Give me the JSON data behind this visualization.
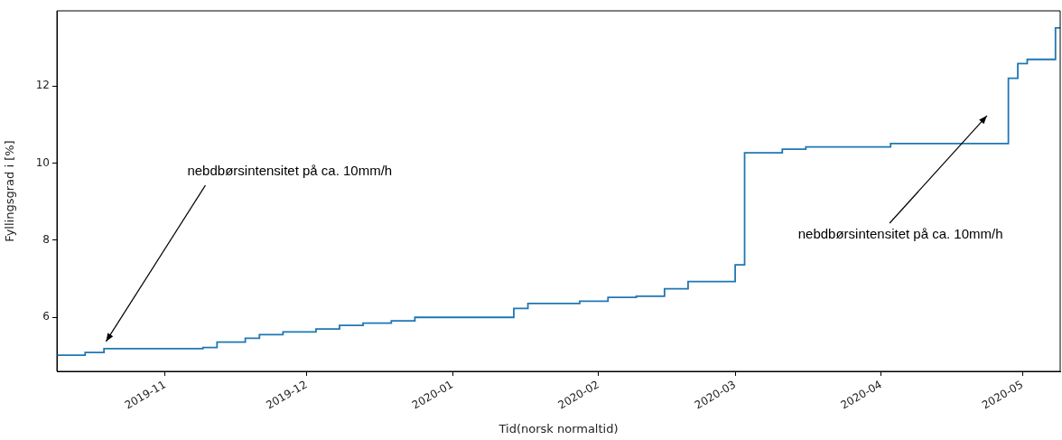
{
  "chart_data": {
    "type": "step",
    "xlabel": "Tid(norsk normaltid)",
    "ylabel": "Fyllingsgrad i [%]",
    "x": [
      "2019-10-09",
      "2019-10-15",
      "2019-10-19",
      "2019-11-09",
      "2019-11-12",
      "2019-11-18",
      "2019-11-21",
      "2019-11-26",
      "2019-12-03",
      "2019-12-08",
      "2019-12-13",
      "2019-12-19",
      "2019-12-24",
      "2020-01-14",
      "2020-01-17",
      "2020-01-28",
      "2020-02-03",
      "2020-02-09",
      "2020-02-15",
      "2020-02-20",
      "2020-03-01",
      "2020-03-03",
      "2020-03-11",
      "2020-03-16",
      "2020-04-03",
      "2020-04-28",
      "2020-04-30",
      "2020-05-02",
      "2020-05-08",
      "2020-05-09"
    ],
    "series": [
      {
        "color": "#1f77b4",
        "values": [
          5.02,
          5.09,
          5.19,
          5.22,
          5.36,
          5.46,
          5.55,
          5.62,
          5.7,
          5.79,
          5.85,
          5.91,
          6.0,
          6.23,
          6.36,
          6.42,
          6.52,
          6.55,
          6.74,
          6.93,
          7.36,
          10.27,
          10.36,
          10.42,
          10.51,
          12.2,
          12.58,
          12.69,
          13.51,
          13.51
        ]
      }
    ],
    "xlim": [
      "2019-10-09",
      "2020-05-09"
    ],
    "xticks": [
      "2019-11",
      "2019-12",
      "2020-01",
      "2020-02",
      "2020-03",
      "2020-04",
      "2020-05"
    ],
    "ylim": [
      4.6,
      13.95
    ],
    "yticks": [
      6,
      8,
      10,
      12
    ],
    "annotations": [
      "nebdbørsintensitet på ca. 10mm/h",
      "nebdbørsintensitet på ca. 10mm/h"
    ]
  }
}
